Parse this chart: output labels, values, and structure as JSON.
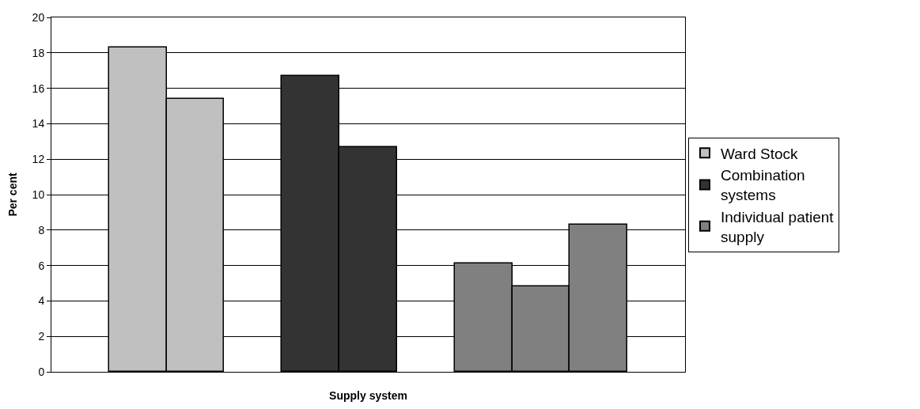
{
  "chart_data": {
    "type": "bar",
    "xlabel": "Supply system",
    "ylabel": "Per cent",
    "categories": [
      null,
      null,
      null,
      null,
      null,
      null,
      null,
      null,
      null,
      null,
      null
    ],
    "series": [
      {
        "name": "Ward Stock",
        "color": "#c0c0c0",
        "values": [
          null,
          18.3,
          15.4,
          null,
          null,
          null,
          null,
          null,
          null,
          null,
          null
        ]
      },
      {
        "name": "Combination systems",
        "color": "#333333",
        "values": [
          null,
          null,
          null,
          null,
          16.7,
          12.7,
          null,
          null,
          null,
          null,
          null
        ]
      },
      {
        "name": "Individual patient supply",
        "color": "#808080",
        "values": [
          null,
          null,
          null,
          null,
          null,
          null,
          null,
          6.1,
          4.8,
          8.3,
          null
        ]
      }
    ],
    "ylim": [
      0,
      20
    ],
    "yticks": [
      0,
      2,
      4,
      6,
      8,
      10,
      12,
      14,
      16,
      18,
      20
    ],
    "grid": "y",
    "legend": "right"
  }
}
